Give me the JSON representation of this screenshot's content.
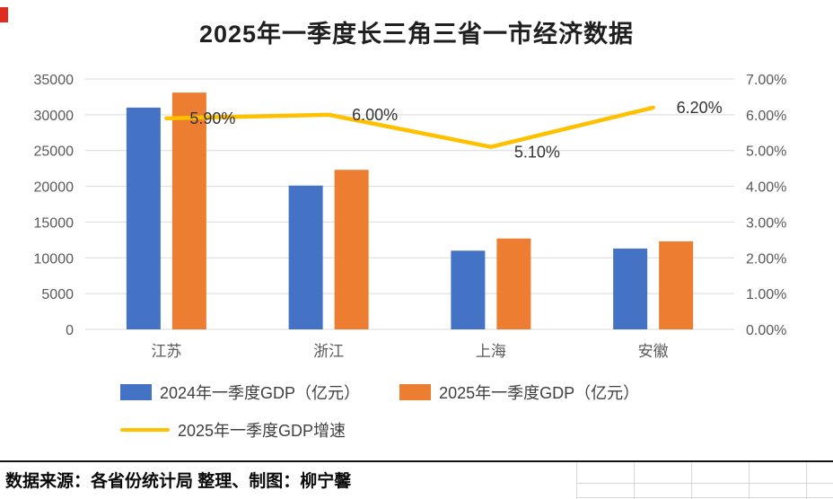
{
  "page": {
    "footer": "数据来源：各省份统计局  整理、制图：柳宁馨"
  },
  "chart_data": {
    "type": "combo-bar-line",
    "title": "2025年一季度长三角三省一市经济数据",
    "categories": [
      "江苏",
      "浙江",
      "上海",
      "安徽"
    ],
    "bar_series": [
      {
        "name": "2024年一季度GDP（亿元）",
        "color": "#4472C4",
        "values": [
          31000,
          20100,
          11000,
          11300
        ]
      },
      {
        "name": "2025年一季度GDP（亿元）",
        "color": "#ED7D31",
        "values": [
          33100,
          22300,
          12700,
          12300
        ]
      }
    ],
    "line_series": {
      "name": "2025年一季度GDP增速",
      "color": "#FFC000",
      "values": [
        5.9,
        6.0,
        5.1,
        6.2
      ],
      "labels": [
        "5.90%",
        "6.00%",
        "5.10%",
        "6.20%"
      ]
    },
    "left_axis": {
      "min": 0,
      "max": 35000,
      "step": 5000,
      "ticks": [
        "35000",
        "30000",
        "25000",
        "20000",
        "15000",
        "10000",
        "5000",
        "0"
      ]
    },
    "right_axis": {
      "min": 0,
      "max": 7,
      "step": 1,
      "ticks": [
        "7.00%",
        "6.00%",
        "5.00%",
        "4.00%",
        "3.00%",
        "2.00%",
        "1.00%",
        "0.00%"
      ]
    },
    "grid": true,
    "legend_position": "bottom",
    "grid_color": "#d9d9d9",
    "axis_text_color": "#595959",
    "label_text_color": "#333333"
  }
}
